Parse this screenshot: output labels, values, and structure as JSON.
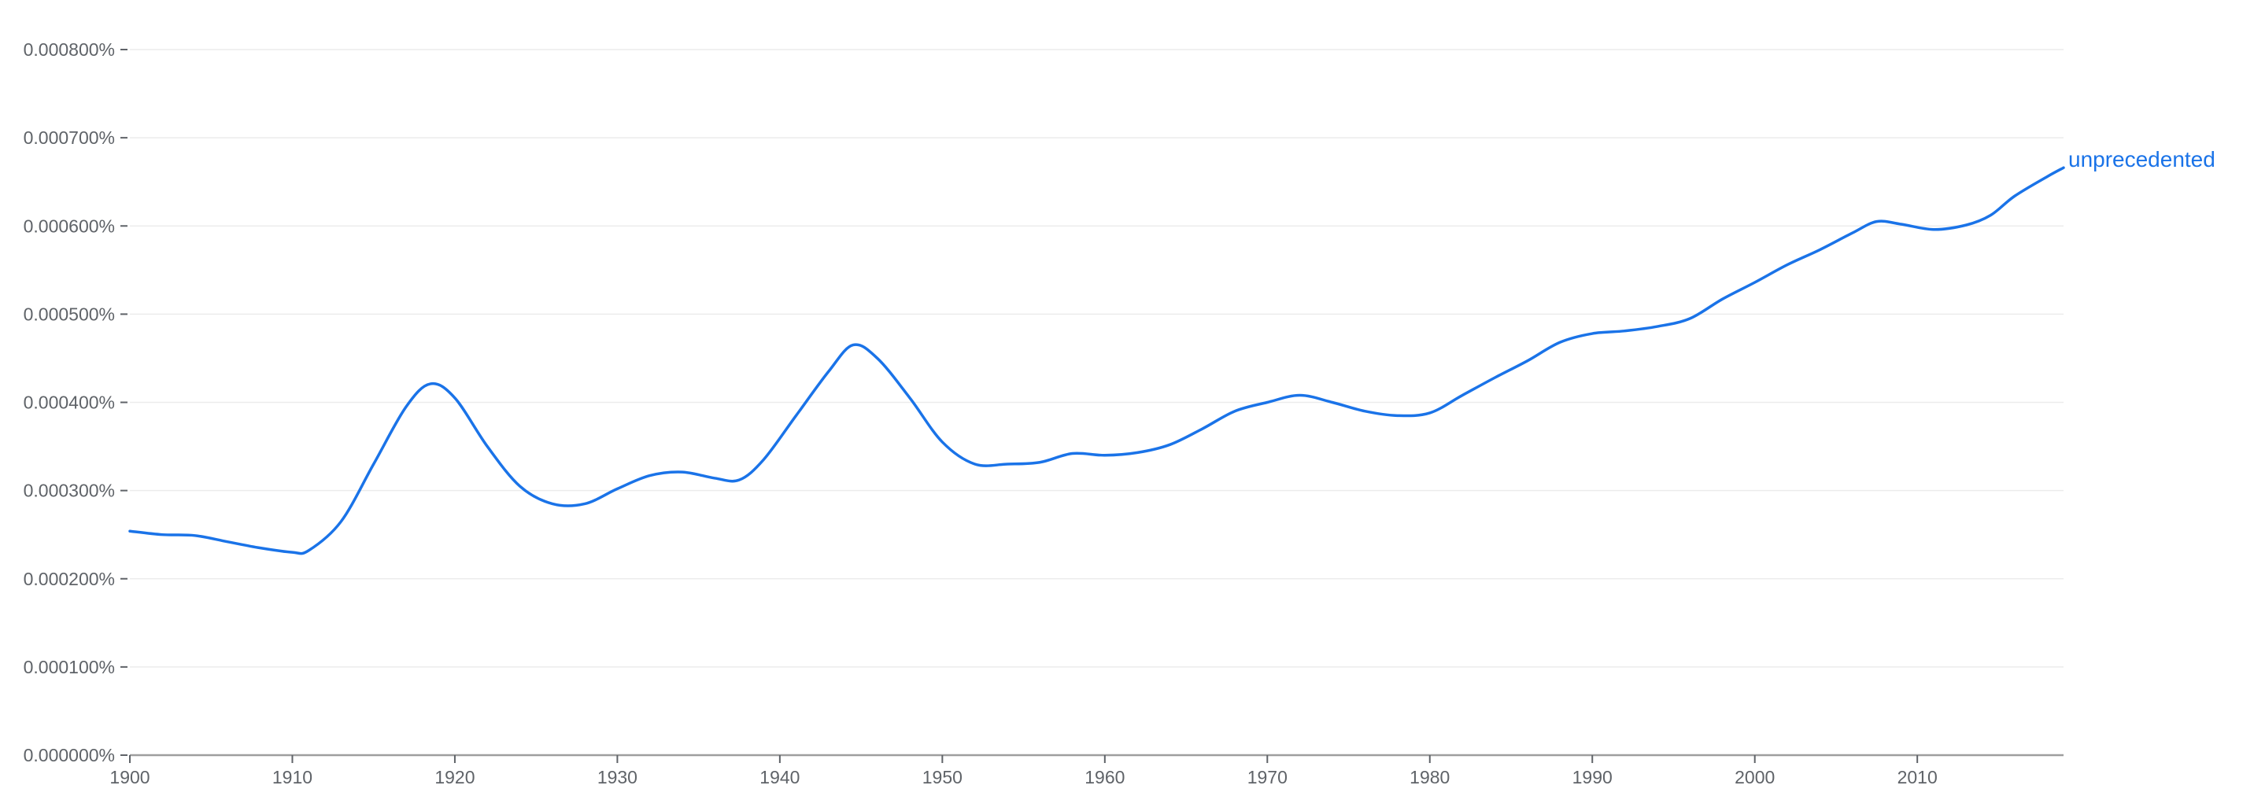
{
  "chart_data": {
    "type": "line",
    "x_ticks": [
      1900,
      1910,
      1920,
      1930,
      1940,
      1950,
      1960,
      1970,
      1980,
      1990,
      2000,
      2010
    ],
    "y_ticks": [
      0,
      0.0001,
      0.0002,
      0.0003,
      0.0004,
      0.0005,
      0.0006,
      0.0007,
      0.0008
    ],
    "y_tick_labels": [
      "0.000000%",
      "0.000100%",
      "0.000200%",
      "0.000300%",
      "0.000400%",
      "0.000500%",
      "0.000600%",
      "0.000700%",
      "0.000800%"
    ],
    "x_tick_labels": [
      "1900",
      "1910",
      "1920",
      "1930",
      "1940",
      "1950",
      "1960",
      "1970",
      "1980",
      "1990",
      "2000",
      "2010"
    ],
    "xlim": [
      1900,
      2019
    ],
    "ylim": [
      0,
      0.0008
    ],
    "y_unit": "%",
    "grid": true,
    "colors": {
      "line": "#1a73e8",
      "label": "#1a73e8",
      "grid": "#ececec",
      "axis": "#9e9e9e",
      "tick_text": "#5f6368"
    },
    "series": [
      {
        "name": "unprecedented",
        "x": [
          1900,
          1902,
          1904,
          1906,
          1908,
          1910,
          1911,
          1913,
          1915,
          1917,
          1918.5,
          1920,
          1922,
          1924,
          1926,
          1928,
          1930,
          1932,
          1934,
          1936,
          1937.5,
          1939,
          1941,
          1943,
          1944.5,
          1946,
          1948,
          1950,
          1952,
          1954,
          1956,
          1958,
          1960,
          1962,
          1964,
          1966,
          1968,
          1970,
          1972,
          1974,
          1976,
          1978,
          1980,
          1982,
          1984,
          1986,
          1988,
          1990,
          1992,
          1994,
          1996,
          1998,
          2000,
          2002,
          2004,
          2006,
          2007.5,
          2009,
          2011,
          2013,
          2014.5,
          2016,
          2018,
          2019
        ],
        "y": [
          0.000254,
          0.00025,
          0.000249,
          0.000242,
          0.000235,
          0.00023,
          0.000232,
          0.000265,
          0.00033,
          0.000395,
          0.000421,
          0.000405,
          0.00035,
          0.000305,
          0.000285,
          0.000285,
          0.000302,
          0.000317,
          0.000321,
          0.000314,
          0.000312,
          0.000335,
          0.000385,
          0.000435,
          0.000465,
          0.00045,
          0.000405,
          0.000355,
          0.00033,
          0.00033,
          0.000332,
          0.000342,
          0.00034,
          0.000343,
          0.000352,
          0.00037,
          0.00039,
          0.0004,
          0.000408,
          0.0004,
          0.00039,
          0.000385,
          0.000388,
          0.000408,
          0.000428,
          0.000447,
          0.000468,
          0.000478,
          0.000481,
          0.000486,
          0.000495,
          0.000517,
          0.000536,
          0.000556,
          0.000573,
          0.000592,
          0.000605,
          0.000602,
          0.000596,
          0.000601,
          0.000612,
          0.000634,
          0.000656,
          0.000666
        ]
      }
    ]
  }
}
